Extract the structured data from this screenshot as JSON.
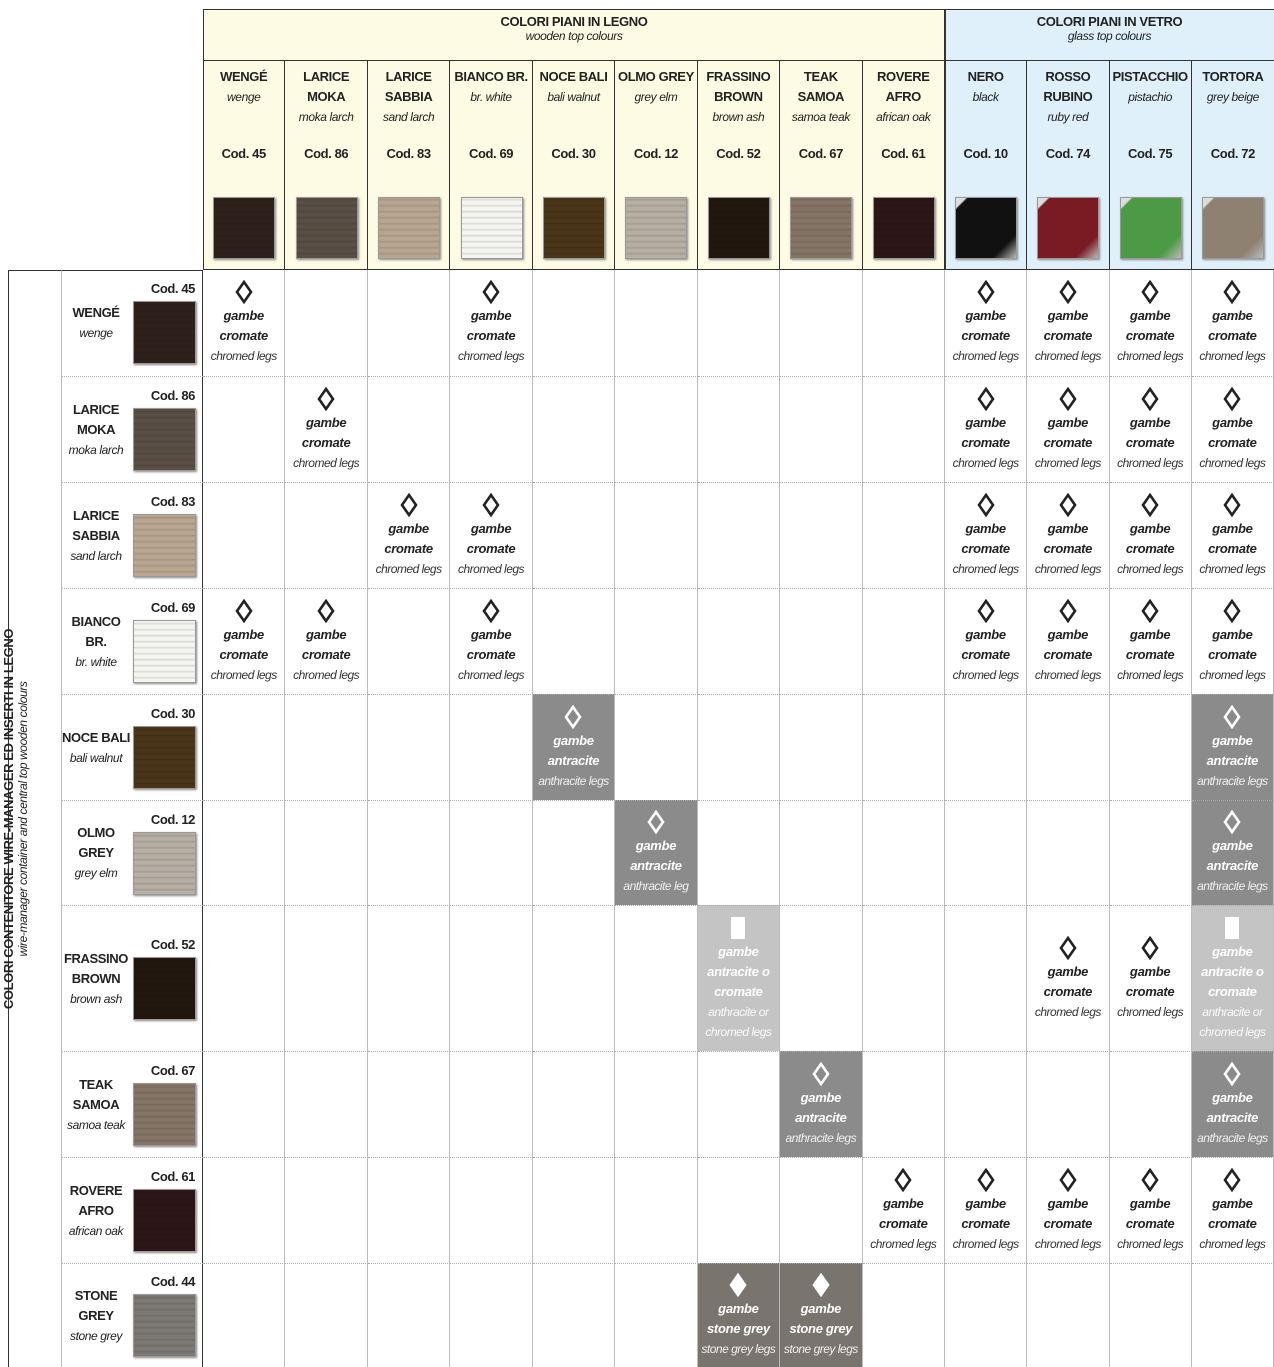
{
  "header": {
    "wood": {
      "title": "COLORI PIANI IN LEGNO",
      "subtitle": "wooden top colours",
      "columns": [
        {
          "name": "WENGÉ",
          "translation": "wenge",
          "code": "Cod. 45",
          "color": "#2e211b"
        },
        {
          "name": "LARICE MOKA",
          "translation": "moka larch",
          "code": "Cod. 86",
          "color": "#5a4f45"
        },
        {
          "name": "LARICE SABBIA",
          "translation": "sand larch",
          "code": "Cod. 83",
          "color": "#b9a690"
        },
        {
          "name": "BIANCO BR.",
          "translation": "br. white",
          "code": "Cod. 69",
          "color": "#f4f4f0"
        },
        {
          "name": "NOCE BALI",
          "translation": "bali walnut",
          "code": "Cod. 30",
          "color": "#4a3518"
        },
        {
          "name": "OLMO GREY",
          "translation": "grey elm",
          "code": "Cod. 12",
          "color": "#b7aea4"
        },
        {
          "name": "FRASSINO BROWN",
          "translation": "brown ash",
          "code": "Cod. 52",
          "color": "#22170f"
        },
        {
          "name": "TEAK SAMOA",
          "translation": "samoa teak",
          "code": "Cod. 67",
          "color": "#857566"
        },
        {
          "name": "ROVERE AFRO",
          "translation": "african oak",
          "code": "Cod. 61",
          "color": "#2d1618"
        }
      ]
    },
    "glass": {
      "title": "COLORI PIANI IN  VETRO",
      "subtitle": "glass top colours",
      "columns": [
        {
          "name": "NERO",
          "translation": "black",
          "code": "Cod. 10",
          "color": "#111111"
        },
        {
          "name": "ROSSO RUBINO",
          "translation": "ruby red",
          "code": "Cod. 74",
          "color": "#7a1a22"
        },
        {
          "name": "PISTACCHIO",
          "translation": "pistachio",
          "code": "Cod. 75",
          "color": "#4c9a45"
        },
        {
          "name": "TORTORA",
          "translation": "grey beige",
          "code": "Cod. 72",
          "color": "#8e8172"
        }
      ]
    }
  },
  "side": {
    "title": "COLORI CONTENITORE WIRE-MANAGER ED INSERTI IN LEGNO",
    "subtitle": "wire-manager container and central top  wooden colours"
  },
  "rows": [
    {
      "name": "WENGÉ",
      "translation": "wenge",
      "code": "Cod. 45",
      "color": "#2e211b",
      "cells": [
        {
          "legs": "gambe cromate",
          "note": "chromed legs",
          "style": "chrome"
        },
        null,
        null,
        {
          "legs": "gambe cromate",
          "note": "chromed legs",
          "style": "chrome"
        },
        null,
        null,
        null,
        null,
        null,
        {
          "legs": "gambe cromate",
          "note": "chromed legs",
          "style": "chrome"
        },
        {
          "legs": "gambe cromate",
          "note": "chromed legs",
          "style": "chrome"
        },
        {
          "legs": "gambe cromate",
          "note": "chromed legs",
          "style": "chrome"
        },
        {
          "legs": "gambe cromate",
          "note": "chromed legs",
          "style": "chrome"
        }
      ]
    },
    {
      "name": "LARICE MOKA",
      "translation": "moka larch",
      "code": "Cod. 86",
      "color": "#5a4f45",
      "cells": [
        null,
        {
          "legs": "gambe cromate",
          "note": "chromed legs",
          "style": "chrome"
        },
        null,
        null,
        null,
        null,
        null,
        null,
        null,
        {
          "legs": "gambe cromate",
          "note": "chromed legs",
          "style": "chrome"
        },
        {
          "legs": "gambe cromate",
          "note": "chromed legs",
          "style": "chrome"
        },
        {
          "legs": "gambe cromate",
          "note": "chromed legs",
          "style": "chrome"
        },
        {
          "legs": "gambe cromate",
          "note": "chromed legs",
          "style": "chrome"
        }
      ]
    },
    {
      "name": "LARICE SABBIA",
      "translation": "sand larch",
      "code": "Cod. 83",
      "color": "#b9a690",
      "cells": [
        null,
        null,
        {
          "legs": "gambe cromate",
          "note": "chromed legs",
          "style": "chrome"
        },
        {
          "legs": "gambe cromate",
          "note": "chromed legs",
          "style": "chrome"
        },
        null,
        null,
        null,
        null,
        null,
        {
          "legs": "gambe cromate",
          "note": "chromed legs",
          "style": "chrome"
        },
        {
          "legs": "gambe cromate",
          "note": "chromed legs",
          "style": "chrome"
        },
        {
          "legs": "gambe cromate",
          "note": "chromed legs",
          "style": "chrome"
        },
        {
          "legs": "gambe cromate",
          "note": "chromed legs",
          "style": "chrome"
        }
      ]
    },
    {
      "name": "BIANCO BR.",
      "translation": "br. white",
      "code": "Cod. 69",
      "color": "#f4f4f0",
      "cells": [
        {
          "legs": "gambe cromate",
          "note": "chromed legs",
          "style": "chrome"
        },
        {
          "legs": "gambe cromate",
          "note": "chromed legs",
          "style": "chrome"
        },
        null,
        {
          "legs": "gambe cromate",
          "note": "chromed legs",
          "style": "chrome"
        },
        null,
        null,
        null,
        null,
        null,
        {
          "legs": "gambe cromate",
          "note": "chromed legs",
          "style": "chrome"
        },
        {
          "legs": "gambe cromate",
          "note": "chromed legs",
          "style": "chrome"
        },
        {
          "legs": "gambe cromate",
          "note": "chromed legs",
          "style": "chrome"
        },
        {
          "legs": "gambe cromate",
          "note": "chromed legs",
          "style": "chrome"
        }
      ]
    },
    {
      "name": "NOCE BALI",
      "translation": "bali walnut",
      "code": "Cod. 30",
      "color": "#4a3518",
      "cells": [
        null,
        null,
        null,
        null,
        {
          "legs": "gambe antracite",
          "note": "anthracite legs",
          "style": "anthracite"
        },
        null,
        null,
        null,
        null,
        null,
        null,
        null,
        {
          "legs": "gambe antracite",
          "note": "anthracite legs",
          "style": "anthracite"
        }
      ]
    },
    {
      "name": "OLMO GREY",
      "translation": "grey elm",
      "code": "Cod. 12",
      "color": "#b7aea4",
      "cells": [
        null,
        null,
        null,
        null,
        null,
        {
          "legs": "gambe antracite",
          "note": "anthracite leg",
          "style": "anthracite"
        },
        null,
        null,
        null,
        null,
        null,
        null,
        {
          "legs": "gambe antracite",
          "note": "anthracite legs",
          "style": "anthracite"
        }
      ]
    },
    {
      "name": "FRASSINO BROWN",
      "translation": "brown ash",
      "code": "Cod. 52",
      "color": "#22170f",
      "cells": [
        null,
        null,
        null,
        null,
        null,
        null,
        {
          "legs": "gambe antracite o cromate",
          "note": "anthracite or chromed  legs",
          "style": "mixed"
        },
        null,
        null,
        null,
        {
          "legs": "gambe cromate",
          "note": "chromed legs",
          "style": "chrome"
        },
        {
          "legs": "gambe cromate",
          "note": "chromed legs",
          "style": "chrome"
        },
        {
          "legs": "gambe antracite o cromate",
          "note": "anthracite or chromed  legs",
          "style": "mixed"
        }
      ]
    },
    {
      "name": "TEAK SAMOA",
      "translation": "samoa teak",
      "code": "Cod. 67",
      "color": "#857566",
      "cells": [
        null,
        null,
        null,
        null,
        null,
        null,
        null,
        {
          "legs": "gambe antracite",
          "note": "anthracite legs",
          "style": "anthracite"
        },
        null,
        null,
        null,
        null,
        {
          "legs": "gambe antracite",
          "note": "anthracite legs",
          "style": "anthracite"
        }
      ]
    },
    {
      "name": "ROVERE AFRO",
      "translation": "african oak",
      "code": "Cod. 61",
      "color": "#2d1618",
      "cells": [
        null,
        null,
        null,
        null,
        null,
        null,
        null,
        null,
        {
          "legs": "gambe cromate",
          "note": "chromed legs",
          "style": "chrome"
        },
        {
          "legs": "gambe cromate",
          "note": "chromed legs",
          "style": "chrome"
        },
        {
          "legs": "gambe cromate",
          "note": "chromed legs",
          "style": "chrome"
        },
        {
          "legs": "gambe cromate",
          "note": "chromed legs",
          "style": "chrome"
        },
        {
          "legs": "gambe cromate",
          "note": "chromed legs",
          "style": "chrome"
        }
      ]
    },
    {
      "name": "STONE GREY",
      "translation": "stone grey",
      "code": "Cod. 44",
      "color": "#7d7a76",
      "cells": [
        null,
        null,
        null,
        null,
        null,
        null,
        {
          "legs": "gambe stone grey",
          "note": "stone grey legs",
          "style": "stone"
        },
        {
          "legs": "gambe stone grey",
          "note": "stone grey legs",
          "style": "stone"
        },
        null,
        null,
        null,
        null,
        null
      ]
    }
  ]
}
